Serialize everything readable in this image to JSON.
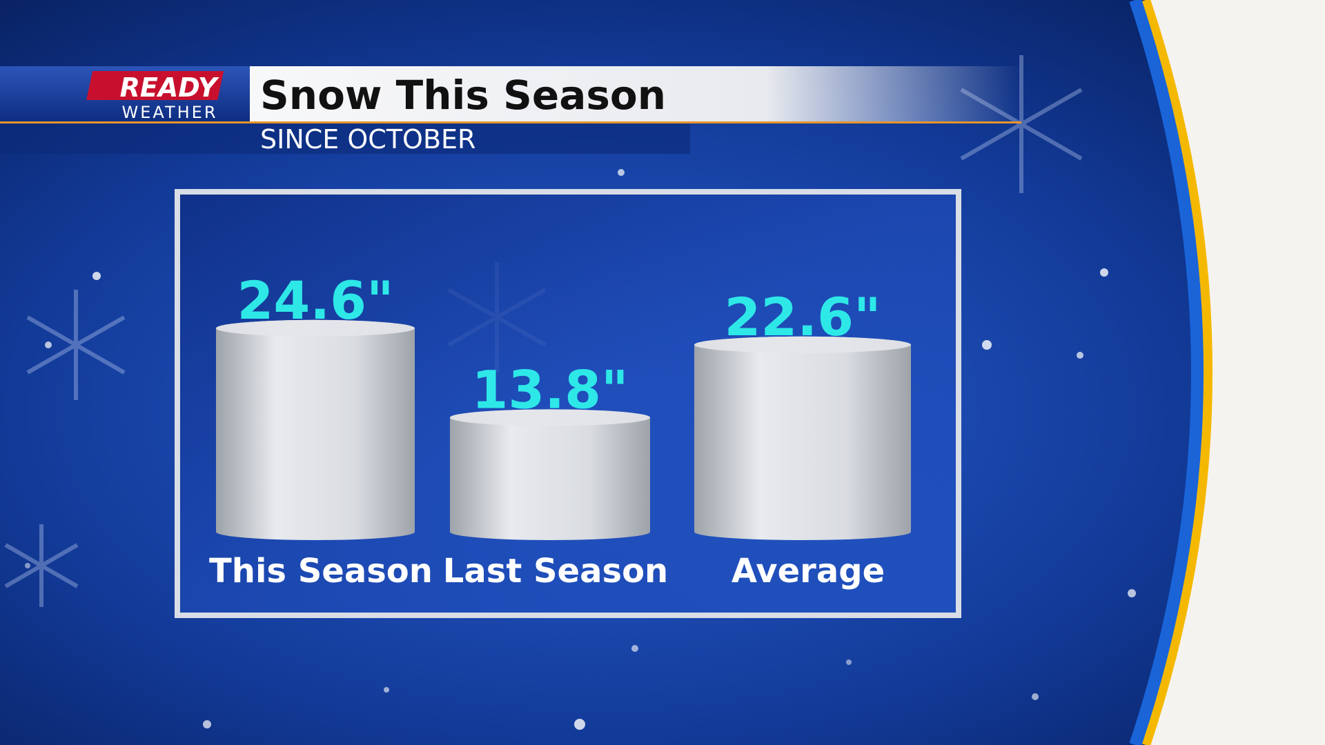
{
  "branding": {
    "line1": "READY",
    "line2": "WEATHER"
  },
  "chart_data": {
    "type": "bar",
    "title": "Snow This Season",
    "subtitle": "SINCE OCTOBER",
    "categories": [
      "This Season",
      "Last Season",
      "Average"
    ],
    "values": [
      24.6,
      13.8,
      22.6
    ],
    "value_labels": [
      "24.6\"",
      "13.8\"",
      "22.6\""
    ],
    "color": "#e4e6ea"
  }
}
